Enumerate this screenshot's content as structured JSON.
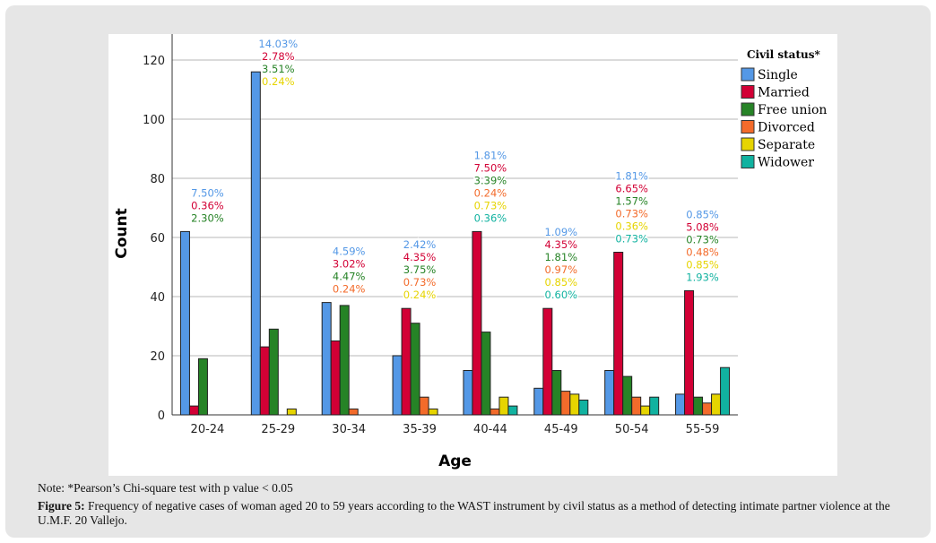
{
  "chart_data": {
    "type": "bar",
    "title": "",
    "xlabel": "Age",
    "ylabel": "Count",
    "ylim": [
      0,
      120
    ],
    "yticks": [
      0,
      20,
      40,
      60,
      80,
      100,
      120
    ],
    "grid": true,
    "legend_title": "Civil status*",
    "legend_position": "right",
    "categories": [
      "20-24",
      "25-29",
      "30-34",
      "35-39",
      "40-44",
      "45-49",
      "50-54",
      "55-59"
    ],
    "series": [
      {
        "name": "Single",
        "color": "#5498e6",
        "values": [
          62,
          116,
          38,
          20,
          15,
          9,
          15,
          7
        ],
        "labels": [
          "7.50%",
          "14.03%",
          "4.59%",
          "2.42%",
          "1.81%",
          "1.09%",
          "1.81%",
          "0.85%"
        ]
      },
      {
        "name": "Married",
        "color": "#d20035",
        "values": [
          3,
          23,
          25,
          36,
          62,
          36,
          55,
          42
        ],
        "labels": [
          "0.36%",
          "2.78%",
          "3.02%",
          "4.35%",
          "7.50%",
          "4.35%",
          "6.65%",
          "5.08%"
        ]
      },
      {
        "name": "Free union",
        "color": "#268326",
        "values": [
          19,
          29,
          37,
          31,
          28,
          15,
          13,
          6
        ],
        "labels": [
          "2.30%",
          "3.51%",
          "4.47%",
          "3.75%",
          "3.39%",
          "1.81%",
          "1.57%",
          "0.73%"
        ]
      },
      {
        "name": "Divorced",
        "color": "#f36b2b",
        "values": [
          0,
          0,
          2,
          6,
          2,
          8,
          6,
          4
        ],
        "labels": [
          null,
          null,
          "0.24%",
          "0.73%",
          "0.24%",
          "0.97%",
          "0.73%",
          "0.48%"
        ]
      },
      {
        "name": "Separate",
        "color": "#e6d400",
        "values": [
          0,
          2,
          0,
          2,
          6,
          7,
          3,
          7
        ],
        "labels": [
          null,
          "0.24%",
          null,
          "0.24%",
          "0.73%",
          "0.85%",
          "0.36%",
          "0.85%"
        ]
      },
      {
        "name": "Widower",
        "color": "#11b2a0",
        "values": [
          0,
          0,
          0,
          0,
          3,
          5,
          6,
          16
        ],
        "labels": [
          null,
          null,
          null,
          null,
          "0.36%",
          "0.60%",
          "0.73%",
          "1.93%"
        ]
      }
    ]
  },
  "caption": {
    "note": "Note: *Pearson’s Chi-square test with p value < 0.05",
    "figure_label": "Figure 5:",
    "figure_text": " Frequency of negative cases of woman aged 20 to 59 years according to the WAST instrument by civil status as a method of detecting intimate partner violence at the U.M.F. 20 Vallejo."
  }
}
